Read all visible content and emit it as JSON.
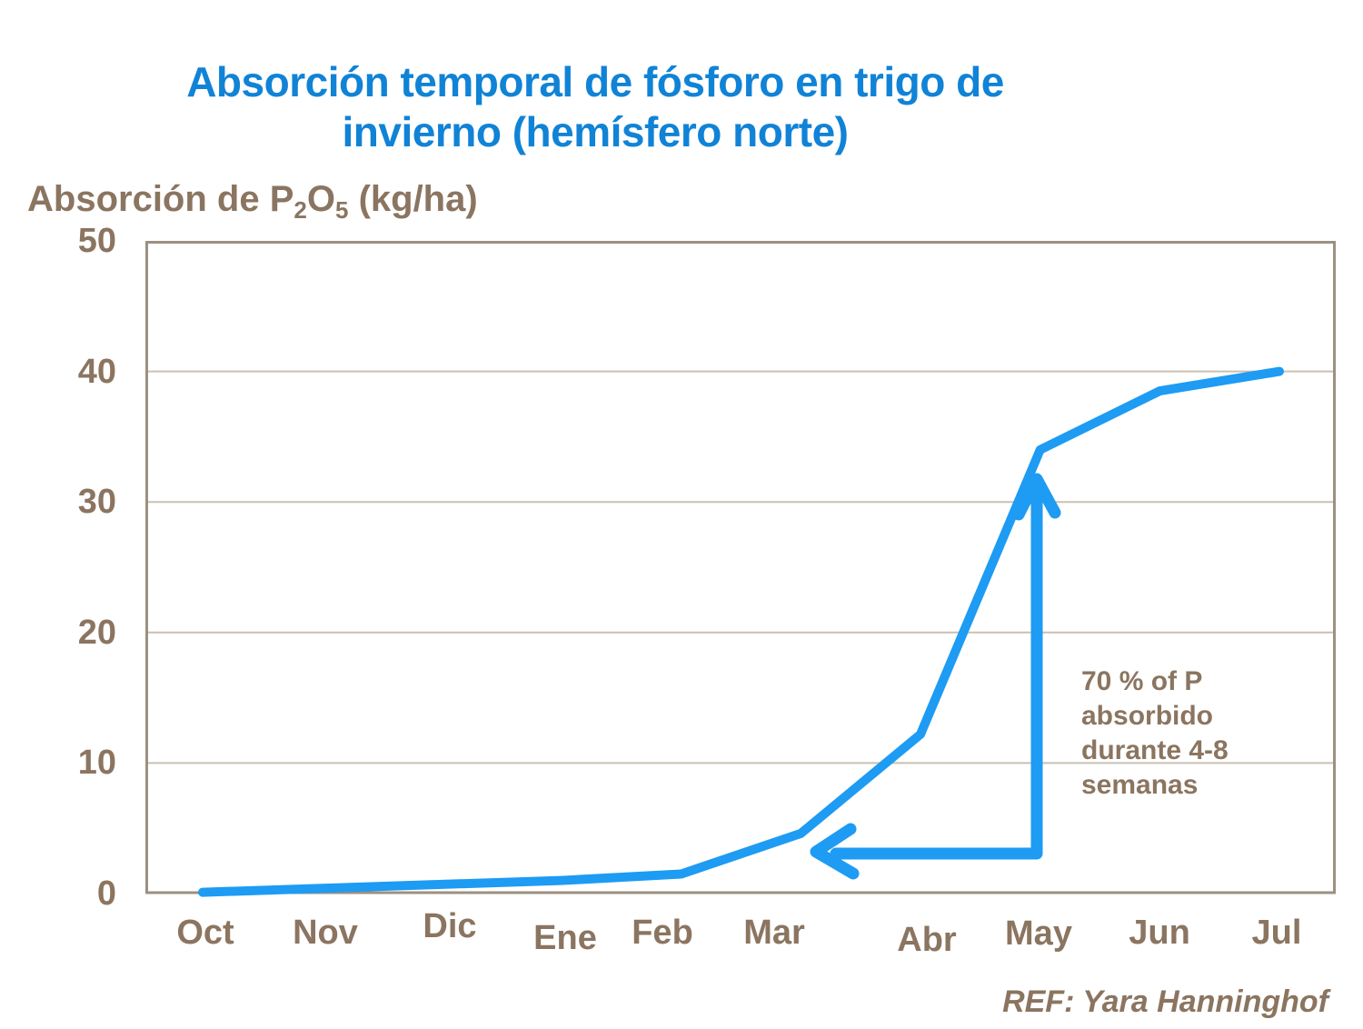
{
  "title": {
    "line1": "Absorción temporal de fósforo en trigo de",
    "line2": "invierno (hemísfero norte)"
  },
  "y_axis_label": {
    "p1": "Absorción de P",
    "sub1": "2",
    "p2": "O",
    "sub2": "5",
    "p3": " (kg/ha)"
  },
  "annotation": {
    "lines": [
      "70 % of P",
      "absorbido",
      "durante 4-8",
      "semanas"
    ]
  },
  "reference": "REF: Yara Hanninghof",
  "colors": {
    "title_blue": "#1083D6",
    "line_blue": "#1E9BF3",
    "text_brown": "#8B7560",
    "axis_border": "#9C9082",
    "gridline": "#C9C0B2",
    "background": "#FFFFFF"
  },
  "chart_data": {
    "type": "line",
    "title": "Absorción temporal de fósforo en trigo de invierno (hemísfero norte)",
    "ylabel": "Absorción de P2O5 (kg/ha)",
    "xlabel": "",
    "categories": [
      "Oct",
      "Nov",
      "Dic",
      "Ene",
      "Feb",
      "Mar",
      "Abr",
      "May",
      "Jun",
      "Jul"
    ],
    "values": [
      0.1,
      0.4,
      0.7,
      1.0,
      1.5,
      4.6,
      12.2,
      34,
      38.5,
      40
    ],
    "y_ticks": [
      0,
      10,
      20,
      30,
      40,
      50
    ],
    "ylim": [
      0,
      50
    ],
    "grid": "horizontal",
    "legend": "none",
    "series_name": "Absorción de P2O5 (kg/ha)",
    "annotations": [
      "70 % of P absorbido durante 4-8 semanas",
      "vertical arrow pointing up at May from ~2.5 to ~32 kg/ha",
      "horizontal arrow pointing left at ~3 kg/ha from May toward Mar"
    ]
  }
}
